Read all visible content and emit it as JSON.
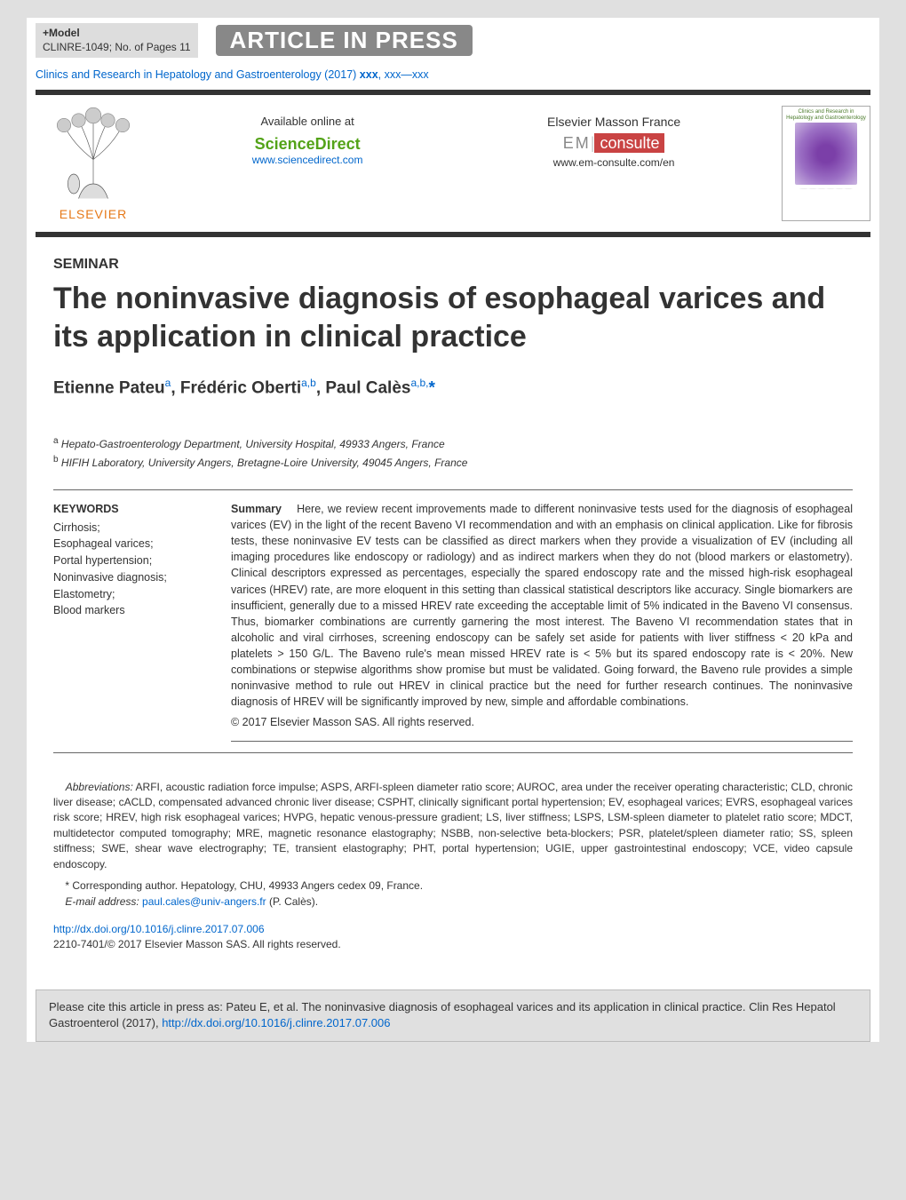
{
  "header": {
    "model_line1": "+Model",
    "model_line2": "CLINRE-1049;    No. of Pages 11",
    "aip": "ARTICLE IN PRESS",
    "journal_ref_prefix": "Clinics and Research in Hepatology and Gastroenterology (2017) ",
    "journal_ref_vol": "xxx",
    "journal_ref_pages": ", xxx—xxx"
  },
  "publisher": {
    "elsevier": "ELSEVIER",
    "available": "Available online at",
    "sd_logo": "ScienceDirect",
    "sd_link": "www.sciencedirect.com",
    "em_label": "Elsevier Masson France",
    "em_em": "EM",
    "em_consulte": "consulte",
    "em_link": "www.em-consulte.com/en",
    "cover_title": "Clinics and Research in Hepatology and Gastroenterology"
  },
  "article": {
    "type": "SEMINAR",
    "title": "The noninvasive diagnosis of esophageal varices and its application in clinical practice",
    "authors_html": "Etienne Pateu<sup>a</sup>, Frédéric Oberti<sup>a,b</sup>, Paul Calès<sup>a,b,</sup><span class='star'>*</span>",
    "affil_a": "Hepato-Gastroenterology Department, University Hospital, 49933 Angers, France",
    "affil_b": "HIFIH Laboratory, University Angers, Bretagne-Loire University, 49045 Angers, France"
  },
  "keywords": {
    "head": "KEYWORDS",
    "list": "Cirrhosis;\nEsophageal varices;\nPortal hypertension;\nNoninvasive diagnosis;\nElastometry;\nBlood markers"
  },
  "summary": {
    "head": "Summary",
    "body": "Here, we review recent improvements made to different noninvasive tests used for the diagnosis of esophageal varices (EV) in the light of the recent Baveno VI recommendation and with an emphasis on clinical application. Like for fibrosis tests, these noninvasive EV tests can be classified as direct markers when they provide a visualization of EV (including all imaging procedures like endoscopy or radiology) and as indirect markers when they do not (blood markers or elastometry). Clinical descriptors expressed as percentages, especially the spared endoscopy rate and the missed high-risk esophageal varices (HREV) rate, are more eloquent in this setting than classical statistical descriptors like accuracy. Single biomarkers are insufficient, generally due to a missed HREV rate exceeding the acceptable limit of 5% indicated in the Baveno VI consensus. Thus, biomarker combinations are currently garnering the most interest. The Baveno VI recommendation states that in alcoholic and viral cirrhoses, screening endoscopy can be safely set aside for patients with liver stiffness < 20 kPa and platelets > 150 G/L. The Baveno rule's mean missed HREV rate is < 5% but its spared endoscopy rate is < 20%. New combinations or stepwise algorithms show promise but must be validated. Going forward, the Baveno rule provides a simple noninvasive method to rule out HREV in clinical practice but the need for further research continues. The noninvasive diagnosis of HREV will be significantly improved by new, simple and affordable combinations.",
    "copyright": "© 2017 Elsevier Masson SAS. All rights reserved."
  },
  "abbrev": {
    "head": "Abbreviations:",
    "body": " ARFI, acoustic radiation force impulse; ASPS, ARFI-spleen diameter ratio score; AUROC, area under the receiver operating characteristic; CLD, chronic liver disease; cACLD, compensated advanced chronic liver disease; CSPHT, clinically significant portal hypertension; EV, esophageal varices; EVRS, esophageal varices risk score; HREV, high risk esophageal varices; HVPG, hepatic venous-pressure gradient; LS, liver stiffness; LSPS, LSM-spleen diameter to platelet ratio score; MDCT, multidetector computed tomography; MRE, magnetic resonance elastography; NSBB, non-selective beta-blockers; PSR, platelet/spleen diameter ratio; SS, spleen stiffness; SWE, shear wave electrography; TE, transient elastography; PHT, portal hypertension; UGIE, upper gastrointestinal endoscopy; VCE, video capsule endoscopy."
  },
  "correspondence": {
    "star": "* ",
    "text": "Corresponding author. Hepatology, CHU, 49933 Angers cedex 09, France.",
    "email_head": "E-mail address: ",
    "email": "paul.cales@univ-angers.fr",
    "email_tail": " (P. Calès)."
  },
  "doi": {
    "url": "http://dx.doi.org/10.1016/j.clinre.2017.07.006",
    "issn": "2210-7401/© 2017 Elsevier Masson SAS. All rights reserved."
  },
  "cite": {
    "prefix": "Please cite this article in press as: Pateu E, et al. The noninvasive diagnosis of esophageal varices and its application in clinical practice. Clin Res Hepatol Gastroenterol (2017), ",
    "doi": "http://dx.doi.org/10.1016/j.clinre.2017.07.006"
  },
  "colors": {
    "link": "#0066cc",
    "orange": "#e67817",
    "green": "#53a318",
    "red": "#c94343",
    "bar": "#333333",
    "greybox": "#e0e0e0"
  }
}
